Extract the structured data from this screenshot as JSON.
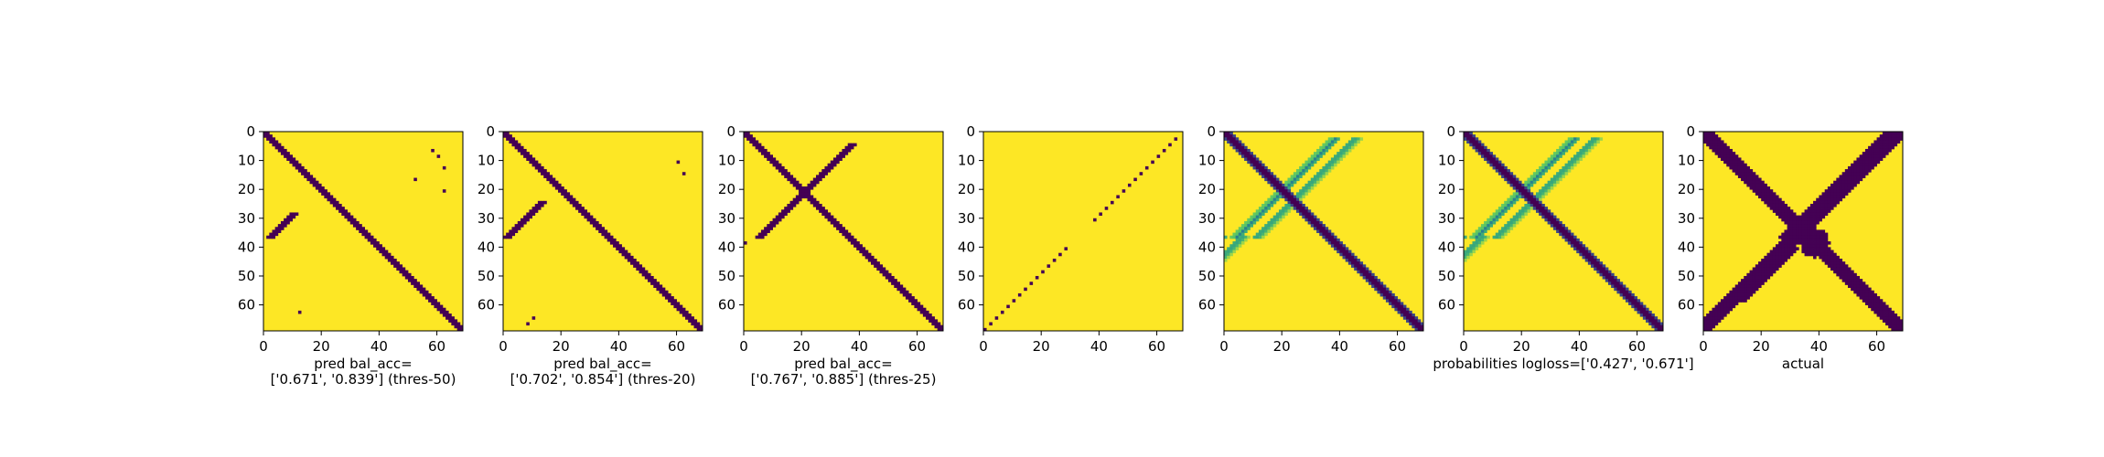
{
  "chart_data": [
    {
      "type": "heatmap",
      "panel": "pred-thres-50",
      "xlabel": [
        "pred bal_acc=",
        "['0.671', '0.839'] (thres-50)"
      ],
      "xticks": [
        0,
        20,
        40,
        60
      ],
      "yticks": [
        0,
        10,
        20,
        30,
        40,
        50,
        60
      ],
      "xlim": [
        0,
        69
      ],
      "ylim": [
        69,
        0
      ],
      "colormap": "viridis",
      "grid": false,
      "size": 69,
      "pattern": {
        "anti_diagonal_width": 1.2,
        "x_segments": [
          [
            28,
            36,
            38,
            1.2
          ],
          [
            52,
            60,
            16,
            1.2
          ]
        ],
        "extra_points": [
          [
            8,
            60
          ],
          [
            6,
            58
          ],
          [
            12,
            62
          ],
          [
            16,
            52
          ],
          [
            62,
            12
          ],
          [
            20,
            62
          ]
        ]
      }
    },
    {
      "type": "heatmap",
      "panel": "pred-thres-20",
      "xlabel": [
        "pred bal_acc=",
        "['0.702', '0.854'] (thres-20)"
      ],
      "xticks": [
        0,
        20,
        40,
        60
      ],
      "yticks": [
        0,
        10,
        20,
        30,
        40,
        50,
        60
      ],
      "xlim": [
        0,
        69
      ],
      "ylim": [
        69,
        0
      ],
      "colormap": "viridis",
      "grid": false,
      "size": 69,
      "pattern": {
        "anti_diagonal_width": 1.6,
        "x_segments": [
          [
            24,
            36,
            37,
            1.4
          ],
          [
            40,
            65,
            32,
            1.4
          ]
        ],
        "extra_points": [
          [
            10,
            60
          ],
          [
            14,
            62
          ],
          [
            64,
            10
          ],
          [
            66,
            8
          ]
        ]
      }
    },
    {
      "type": "heatmap",
      "panel": "pred-thres-25",
      "xlabel": [
        "pred bal_acc=",
        "['0.767', '0.885'] (thres-25)"
      ],
      "xticks": [
        0,
        20,
        40,
        60
      ],
      "yticks": [
        0,
        10,
        20,
        30,
        40,
        50,
        60
      ],
      "xlim": [
        0,
        69
      ],
      "ylim": [
        69,
        0
      ],
      "colormap": "viridis",
      "grid": false,
      "size": 69,
      "pattern": {
        "anti_diagonal_width": 2.0,
        "x_segments": [
          [
            4,
            36,
            41,
            2.0
          ],
          [
            38,
            66,
            37,
            1.8
          ],
          [
            45,
            65,
            40,
            1.2
          ]
        ],
        "extra_points": []
      }
    },
    {
      "type": "heatmap",
      "panel": "pred-sparse",
      "xlabel": [],
      "xticks": [
        0,
        20,
        40,
        60
      ],
      "yticks": [
        0,
        10,
        20,
        30,
        40,
        50,
        60
      ],
      "xlim": [
        0,
        69
      ],
      "ylim": [
        69,
        0
      ],
      "colormap": "viridis",
      "grid": false,
      "size": 69,
      "pattern": {
        "x_dots": {
          "from": 1,
          "to": 68,
          "skip": [
            [
              31,
              38
            ]
          ]
        }
      }
    },
    {
      "type": "heatmap",
      "panel": "probabilities-1",
      "xlabel": [],
      "xticks": [
        0,
        20,
        40,
        60
      ],
      "yticks": [
        0,
        10,
        20,
        30,
        40,
        50,
        60
      ],
      "xlim": [
        0,
        69
      ],
      "ylim": [
        69,
        0
      ],
      "colormap": "viridis",
      "grid": false,
      "size": 69,
      "pattern": {
        "anti_diagonal_width": 2.2,
        "soft_x_segments": [
          [
            2,
            36,
            39.5,
            1.6
          ],
          [
            2,
            36,
            47.5,
            1.6
          ],
          [
            36,
            68,
            34.5,
            1.6
          ],
          [
            36,
            68,
            42.5,
            1.6
          ]
        ]
      }
    },
    {
      "type": "heatmap",
      "panel": "probabilities-2",
      "xlabel": [
        "probabilities logloss=['0.427', '0.671']"
      ],
      "xticks": [
        0,
        20,
        40,
        60
      ],
      "yticks": [
        0,
        10,
        20,
        30,
        40,
        50,
        60
      ],
      "xlim": [
        0,
        69
      ],
      "ylim": [
        69,
        0
      ],
      "colormap": "viridis",
      "grid": false,
      "size": 69,
      "pattern": {
        "anti_diagonal_width": 2.2,
        "soft_x_segments": [
          [
            2,
            36,
            39.5,
            1.6
          ],
          [
            2,
            36,
            47.5,
            1.6
          ],
          [
            36,
            68,
            34.5,
            1.6
          ],
          [
            36,
            68,
            42.5,
            1.6
          ]
        ]
      }
    },
    {
      "type": "heatmap",
      "panel": "actual",
      "xlabel": [
        "actual"
      ],
      "xticks": [
        0,
        20,
        40,
        60
      ],
      "yticks": [
        0,
        10,
        20,
        30,
        40,
        50,
        60
      ],
      "xlim": [
        0,
        69
      ],
      "ylim": [
        69,
        0
      ],
      "colormap": "viridis",
      "grid": false,
      "size": 69,
      "pattern": {
        "anti_diagonal_width": 3.2,
        "x_segments": [
          [
            0,
            36,
            66,
            4.5
          ],
          [
            36,
            68,
            67,
            3.5
          ],
          [
            40,
            58,
            70,
            3.0
          ]
        ],
        "blob": [
          38,
          38,
          5
        ]
      }
    }
  ],
  "colors": {
    "high": "#fde725",
    "low": "#440154",
    "mid1": "#21908d",
    "mid2": "#5ec962",
    "mid3": "#3b528b"
  }
}
